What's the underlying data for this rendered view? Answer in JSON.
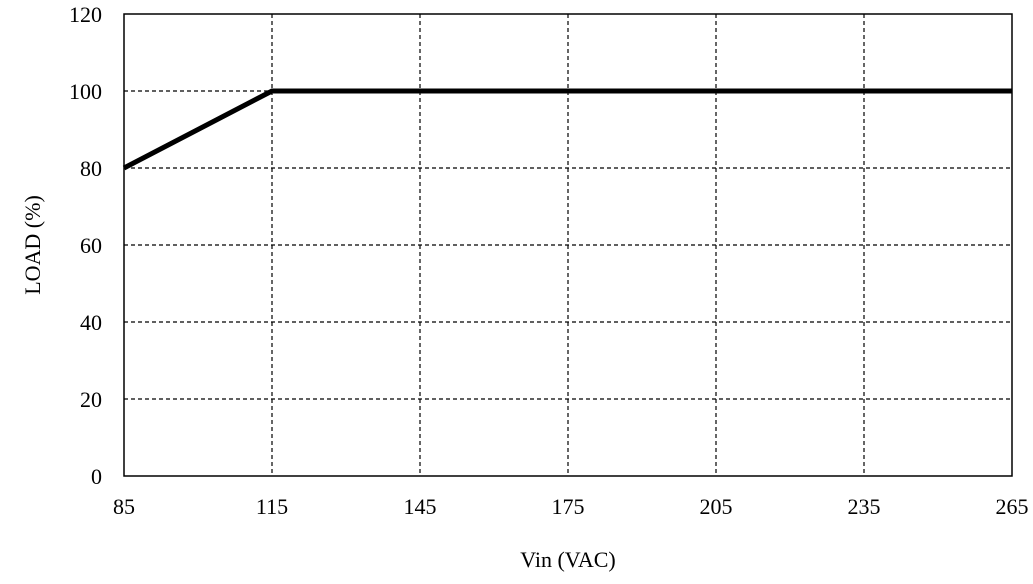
{
  "chart_data": {
    "type": "line",
    "title": "",
    "xlabel": "Vin (VAC)",
    "ylabel": "LOAD (%)",
    "xlim": [
      85,
      265
    ],
    "ylim": [
      0,
      120
    ],
    "x_ticks": [
      85,
      115,
      145,
      175,
      205,
      235,
      265
    ],
    "y_ticks": [
      0,
      20,
      40,
      60,
      80,
      100,
      120
    ],
    "grid": true,
    "grid_style": "dashed",
    "legend": "none",
    "series": [
      {
        "x": [
          85,
          115,
          265
        ],
        "y": [
          80,
          100,
          100
        ],
        "color": "#000000"
      }
    ]
  }
}
